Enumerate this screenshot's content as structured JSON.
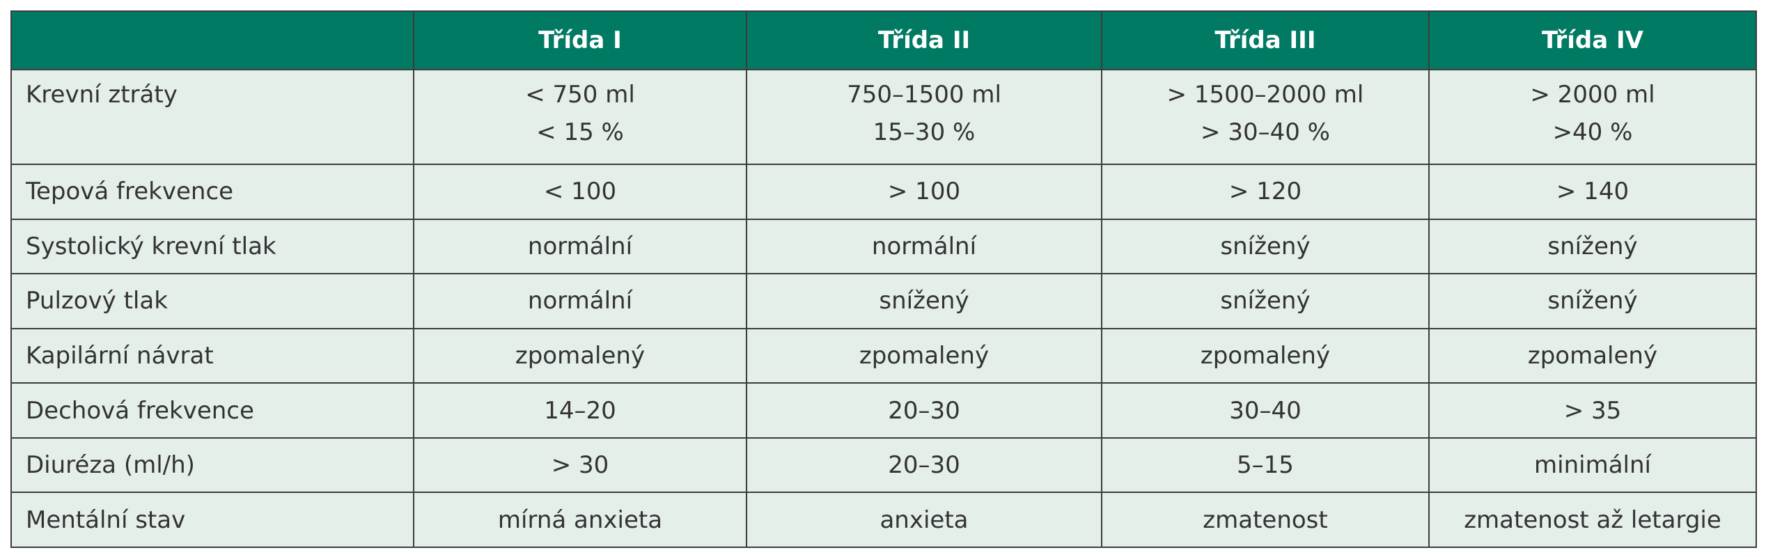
{
  "header": {
    "columns": [
      "Třída I",
      "Třída II",
      "Třída III",
      "Třída IV"
    ]
  },
  "rows": [
    {
      "label": "Krevní ztráty",
      "cells": [
        [
          "< 750 ml",
          "< 15 %"
        ],
        [
          "750–1500 ml",
          "15–30 %"
        ],
        [
          "> 1500–2000 ml",
          "> 30–40 %"
        ],
        [
          "> 2000 ml",
          ">40 %"
        ]
      ]
    },
    {
      "label": "Tepová frekvence",
      "cells": [
        "< 100",
        "> 100",
        "> 120",
        "> 140"
      ]
    },
    {
      "label": "Systolický krevní tlak",
      "cells": [
        "normální",
        "normální",
        "snížený",
        "snížený"
      ]
    },
    {
      "label": "Pulzový tlak",
      "cells": [
        "normální",
        "snížený",
        "snížený",
        "snížený"
      ]
    },
    {
      "label": "Kapilární návrat",
      "cells": [
        "zpomalený",
        "zpomalený",
        "zpomalený",
        "zpomalený"
      ]
    },
    {
      "label": "Dechová frekvence",
      "cells": [
        "14–20",
        "20–30",
        "30–40",
        "> 35"
      ]
    },
    {
      "label": "Diuréza (ml/h)",
      "cells": [
        "> 30",
        "20–30",
        "5–15",
        "minimální"
      ]
    },
    {
      "label": "Mentální stav",
      "cells": [
        "mírná anxieta",
        "anxieta",
        "zmatenost",
        "zmatenost až letargie"
      ]
    }
  ]
}
